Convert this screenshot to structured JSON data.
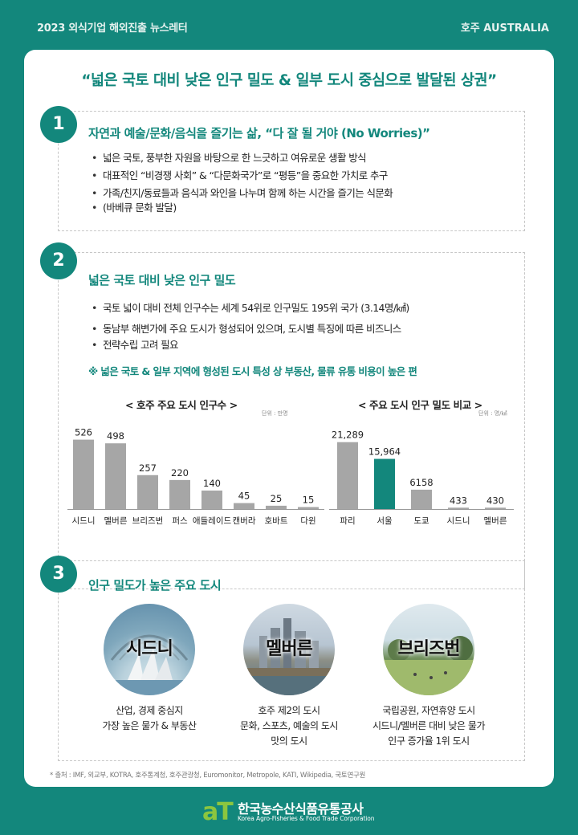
{
  "header": {
    "left": "2023 외식기업 해외진출 뉴스레터",
    "right": "호주 AUSTRALIA"
  },
  "headline": "“넓은 국토 대비 낮은 인구 밀도 & 일부 도시 중심으로 발달된 상권”",
  "section1": {
    "num": "1",
    "title": "자연과 예술/문화/음식을 즐기는 삶, “다 잘 될 거야 (No Worries)”",
    "bullets": [
      "넓은 국토, 풍부한 자원을 바탕으로 한 느긋하고 여유로운 생활 방식",
      "대표적인 “비경쟁 사회” & “다문화국가”로 “평등”을 중요한 가치로 추구",
      "가족/친지/동료들과 음식과 와인을 나누며 함께 하는 시간을 즐기는 식문화",
      "(바베큐 문화 발달)"
    ]
  },
  "section2": {
    "num": "2",
    "title": "넓은 국토 대비 낮은 인구 밀도",
    "bullets": [
      "국토 넓이 대비 전체 인구수는 세계 54위로 인구밀도 195위 국가 (3.14명/㎢)",
      "동남부 해변가에 주요 도시가 형성되어 있으며, 도시별 특징에 따른 비즈니스",
      "전략수립 고려 필요"
    ],
    "note": "※ 넓은 국토 & 일부 지역에 형성된 도시 특성 상 부동산, 물류 유통 비용이 높은 편"
  },
  "chart_data": [
    {
      "type": "bar",
      "title": "< 호주 주요 도시 인구수 >",
      "unit": "단위 : 만명",
      "categories": [
        "시드니",
        "멜버른",
        "브리즈번",
        "퍼스",
        "애들레이드",
        "캔버라",
        "호바트",
        "다윈"
      ],
      "values": [
        526,
        498,
        257,
        220,
        140,
        45,
        25,
        15
      ],
      "labels": [
        "526",
        "498",
        "257",
        "220",
        "140",
        "45",
        "25",
        "15"
      ],
      "ylim": [
        0,
        560
      ],
      "color": "#a6a6a6"
    },
    {
      "type": "bar",
      "title": "< 주요 도시 인구 밀도 비교 >",
      "unit": "단위 : 명/㎢",
      "categories": [
        "파리",
        "서울",
        "도쿄",
        "시드니",
        "멜버른"
      ],
      "values": [
        21289,
        15964,
        6158,
        433,
        430
      ],
      "labels": [
        "21,289",
        "15,964",
        "6158",
        "433",
        "430"
      ],
      "ylim": [
        0,
        23000
      ],
      "color": "#a6a6a6",
      "highlight_color": "#13877c",
      "highlight_index": 1
    }
  ],
  "section3": {
    "num": "3",
    "title": "인구 밀도가 높은 주요 도시",
    "cities": [
      {
        "name": "시드니",
        "lines": [
          "산업, 경제 중심지",
          "가장 높은 물가 & 부동산"
        ]
      },
      {
        "name": "멜버른",
        "lines": [
          "호주 제2의 도시",
          "문화, 스포츠, 예술의 도시",
          "맛의 도시"
        ]
      },
      {
        "name": "브리즈번",
        "lines": [
          "국립공원, 자연휴양 도시",
          "시드니/멜버른 대비 낮은 물가",
          "인구 증가율 1위 도시"
        ]
      }
    ]
  },
  "source": "* 출처 : IMF, 외교부, KOTRA, 호주통계청, 호주관광청, Euromonitor, Metropole, KATI, Wikipedia, 국토연구원",
  "footer": {
    "logo_mark": "aT",
    "org_ko": "한국농수산식품유통공사",
    "org_en": "Korea Agro-Fisheries & Food Trade Corporation"
  }
}
